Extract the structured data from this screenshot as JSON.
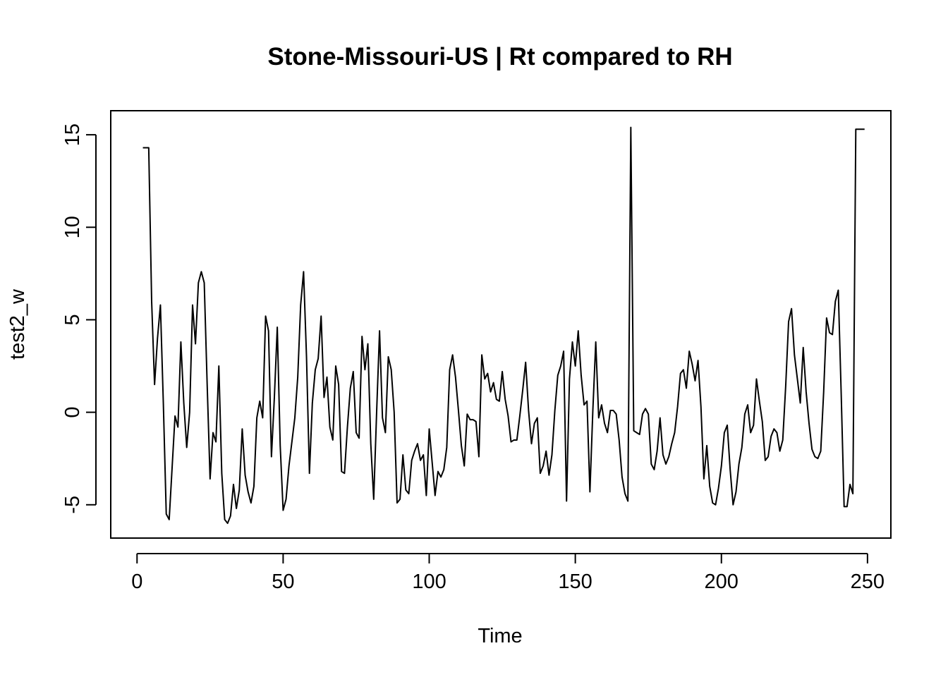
{
  "chart_data": {
    "type": "line",
    "title": "Stone-Missouri-US | Rt compared to RH",
    "xlabel": "Time",
    "ylabel": "test2_w",
    "xlim": [
      -9,
      258
    ],
    "ylim": [
      -6.8,
      16.3
    ],
    "x_ticks": [
      0,
      50,
      100,
      150,
      200,
      250
    ],
    "y_ticks": [
      -5,
      0,
      5,
      10,
      15
    ],
    "grid": false,
    "legend": "none",
    "line_color": "#000000",
    "series": [
      {
        "x_start": 2,
        "values": [
          14.3,
          14.3,
          14.3,
          6.0,
          1.5,
          4.0,
          5.8,
          0.5,
          -5.5,
          -5.8,
          -3.0,
          -0.2,
          -0.8,
          3.8,
          0.5,
          -1.9,
          0.0,
          5.8,
          3.7,
          7.0,
          7.6,
          7.0,
          1.5,
          -3.6,
          -1.1,
          -1.6,
          2.5,
          -3.3,
          -5.8,
          -6.0,
          -5.6,
          -3.9,
          -5.2,
          -4.2,
          -0.9,
          -3.4,
          -4.3,
          -4.9,
          -4.0,
          -0.3,
          0.6,
          -0.3,
          5.2,
          4.4,
          -2.4,
          0.8,
          4.6,
          -1.8,
          -5.3,
          -4.7,
          -2.9,
          -1.6,
          -0.3,
          1.9,
          5.8,
          7.6,
          3.0,
          -3.3,
          0.5,
          2.3,
          2.9,
          5.2,
          0.8,
          1.9,
          -0.8,
          -1.5,
          2.5,
          1.5,
          -3.2,
          -3.3,
          -0.8,
          1.3,
          2.2,
          -1.1,
          -1.4,
          4.1,
          2.3,
          3.7,
          -1.7,
          -4.7,
          0.0,
          4.4,
          -0.3,
          -1.1,
          3.0,
          2.3,
          0.0,
          -4.9,
          -4.7,
          -2.3,
          -4.2,
          -4.4,
          -2.6,
          -2.1,
          -1.7,
          -2.6,
          -2.3,
          -4.5,
          -0.9,
          -2.7,
          -4.5,
          -3.2,
          -3.5,
          -3.1,
          -1.9,
          2.3,
          3.1,
          1.9,
          0.1,
          -1.8,
          -2.9,
          -0.1,
          -0.4,
          -0.4,
          -0.5,
          -2.4,
          3.1,
          1.8,
          2.1,
          1.1,
          1.6,
          0.7,
          0.6,
          2.2,
          0.7,
          -0.2,
          -1.6,
          -1.5,
          -1.5,
          -0.2,
          1.2,
          2.7,
          0.1,
          -1.7,
          -0.6,
          -0.3,
          -3.3,
          -2.9,
          -2.1,
          -3.4,
          -2.3,
          0.1,
          2.0,
          2.5,
          3.3,
          -4.8,
          1.8,
          3.8,
          2.5,
          4.4,
          2.0,
          0.4,
          0.6,
          -4.3,
          0.1,
          3.8,
          -0.3,
          0.4,
          -0.6,
          -1.1,
          0.1,
          0.1,
          -0.1,
          -1.5,
          -3.5,
          -4.4,
          -4.8,
          15.4,
          -1.0,
          -1.1,
          -1.2,
          -0.1,
          0.2,
          -0.1,
          -2.8,
          -3.1,
          -2.1,
          -0.3,
          -2.3,
          -2.8,
          -2.4,
          -1.7,
          -1.1,
          0.3,
          2.1,
          2.3,
          1.3,
          3.3,
          2.6,
          1.7,
          2.8,
          0.3,
          -3.6,
          -1.8,
          -4.0,
          -4.9,
          -5.0,
          -4.1,
          -2.9,
          -1.1,
          -0.7,
          -3.1,
          -5.0,
          -4.3,
          -2.8,
          -1.9,
          -0.1,
          0.4,
          -1.1,
          -0.7,
          1.8,
          0.6,
          -0.5,
          -2.6,
          -2.4,
          -1.3,
          -0.9,
          -1.1,
          -2.1,
          -1.5,
          1.4,
          4.9,
          5.6,
          3.1,
          1.8,
          0.5,
          3.5,
          1.1,
          -0.6,
          -2.0,
          -2.4,
          -2.5,
          -2.1,
          1.1,
          5.1,
          4.3,
          4.2,
          6.0,
          6.6,
          1.0,
          -5.1,
          -5.1,
          -3.9,
          -4.4,
          15.3,
          15.3,
          15.3,
          15.3
        ]
      }
    ]
  }
}
